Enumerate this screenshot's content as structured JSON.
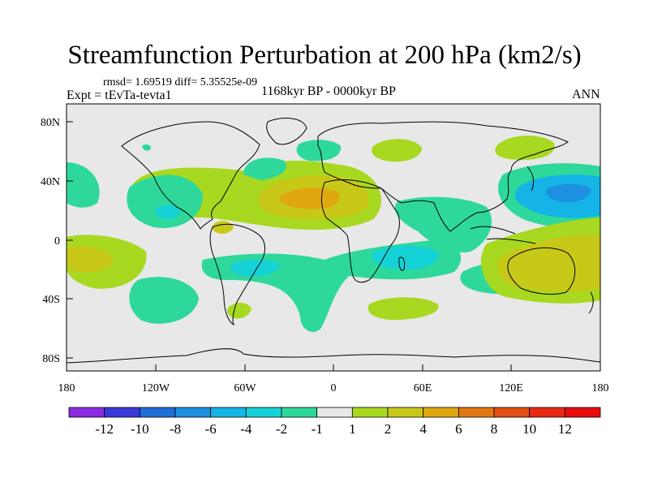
{
  "title": "Streamfunction Perturbation at 200 hPa (km2/s)",
  "stats_line": "rmsd= 1.69519 diff= 5.35525e-09",
  "experiment": "Expt = tEvTa-tevta1",
  "period": "1168kyr BP - 0000kyr BP",
  "season": "ANN",
  "map": {
    "lat_ticks": [
      "80N",
      "40N",
      "0",
      "40S",
      "80S"
    ],
    "lon_ticks": [
      "180",
      "120W",
      "60W",
      "0",
      "60E",
      "120E",
      "180"
    ],
    "lat_range": [
      -90,
      90
    ],
    "lon_range": [
      -180,
      180
    ]
  },
  "colorbar": {
    "levels": [
      "-12",
      "-10",
      "-8",
      "-6",
      "-4",
      "-2",
      "-1",
      "1",
      "2",
      "4",
      "6",
      "8",
      "10",
      "12"
    ],
    "colors": [
      "#8a2be2",
      "#3a3ad8",
      "#1e6ed8",
      "#1e90e0",
      "#14b4e6",
      "#14d2d6",
      "#2ed89a",
      "#e8e8e8",
      "#a8d820",
      "#c8c818",
      "#e0a810",
      "#e07814",
      "#e05014",
      "#e82a14",
      "#e80c0c"
    ]
  },
  "anomalies": [
    {
      "id": "n-africa-high",
      "color": "#c8c818"
    },
    {
      "id": "n-africa-core",
      "color": "#e0a810"
    },
    {
      "id": "nw-pacific-low",
      "color": "#14b4e6"
    },
    {
      "id": "australia-high",
      "color": "#c8c818"
    }
  ]
}
